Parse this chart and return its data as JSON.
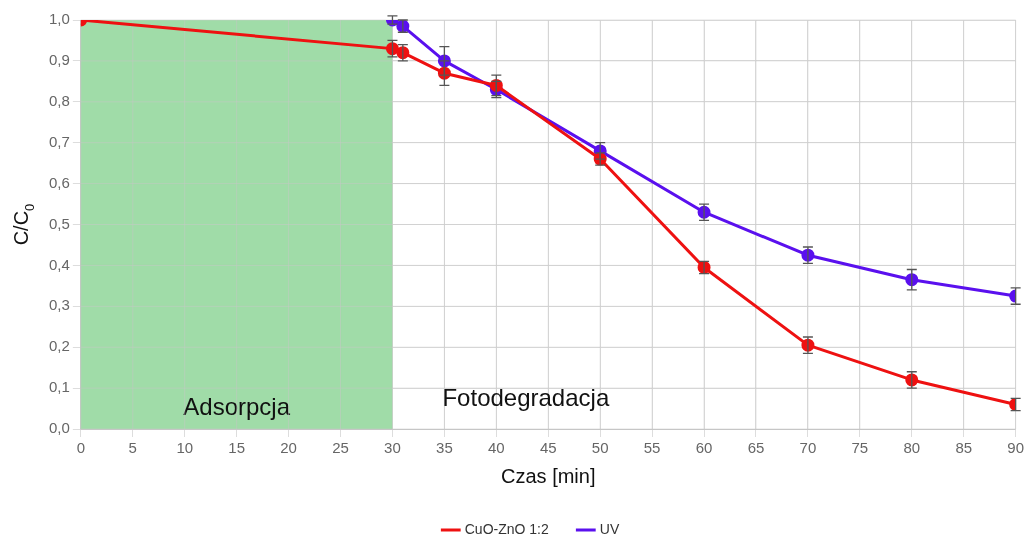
{
  "chart_data": {
    "type": "line",
    "xlabel": "Czas [min]",
    "ylabel": "C/C$_{0}$",
    "xlim": [
      0,
      90
    ],
    "xticks": [
      0,
      5,
      10,
      15,
      20,
      25,
      30,
      35,
      40,
      45,
      50,
      55,
      60,
      65,
      70,
      75,
      80,
      85,
      90
    ],
    "ylim": [
      0,
      1.0
    ],
    "yticks": [
      {
        "value": 0,
        "label": "0,0"
      },
      {
        "value": 0.1,
        "label": "0,1"
      },
      {
        "value": 0.2,
        "label": "0,2"
      },
      {
        "value": 0.3,
        "label": "0,3"
      },
      {
        "value": 0.4,
        "label": "0,4"
      },
      {
        "value": 0.5,
        "label": "0,5"
      },
      {
        "value": 0.6,
        "label": "0,6"
      },
      {
        "value": 0.7,
        "label": "0,7"
      },
      {
        "value": 0.8,
        "label": "0,8"
      },
      {
        "value": 0.9,
        "label": "0,9"
      },
      {
        "value": 1.0,
        "label": "1,0"
      }
    ],
    "series": [
      {
        "name": "CuO-ZnO 1:2",
        "color": "#ee1111",
        "x": [
          0,
          30,
          31,
          35,
          40,
          50,
          60,
          70,
          80,
          90
        ],
        "values": [
          1.0,
          0.93,
          0.92,
          0.87,
          0.84,
          0.66,
          0.395,
          0.205,
          0.12,
          0.06
        ],
        "errors": [
          null,
          0.02,
          0.02,
          0.03,
          0.025,
          0.015,
          0.015,
          0.02,
          0.02,
          0.015
        ]
      },
      {
        "name": "UV",
        "color": "#5a10ee",
        "x": [
          30,
          31,
          35,
          40,
          50,
          60,
          70,
          80,
          90
        ],
        "values": [
          1.0,
          0.985,
          0.9,
          0.83,
          0.68,
          0.53,
          0.425,
          0.365,
          0.325
        ],
        "errors": [
          0.01,
          0.015,
          0.035,
          0.02,
          0.02,
          0.02,
          0.02,
          0.025,
          0.02
        ]
      }
    ],
    "bands": [
      {
        "axis": "x",
        "from": 0,
        "to": 30,
        "label": "Adsorpcja",
        "color": "#a0dca8"
      }
    ],
    "annotations": [
      "Fotodegradacja"
    ],
    "grid": true,
    "legend": "bottom",
    "marker": "circle",
    "line_style": "solid"
  }
}
